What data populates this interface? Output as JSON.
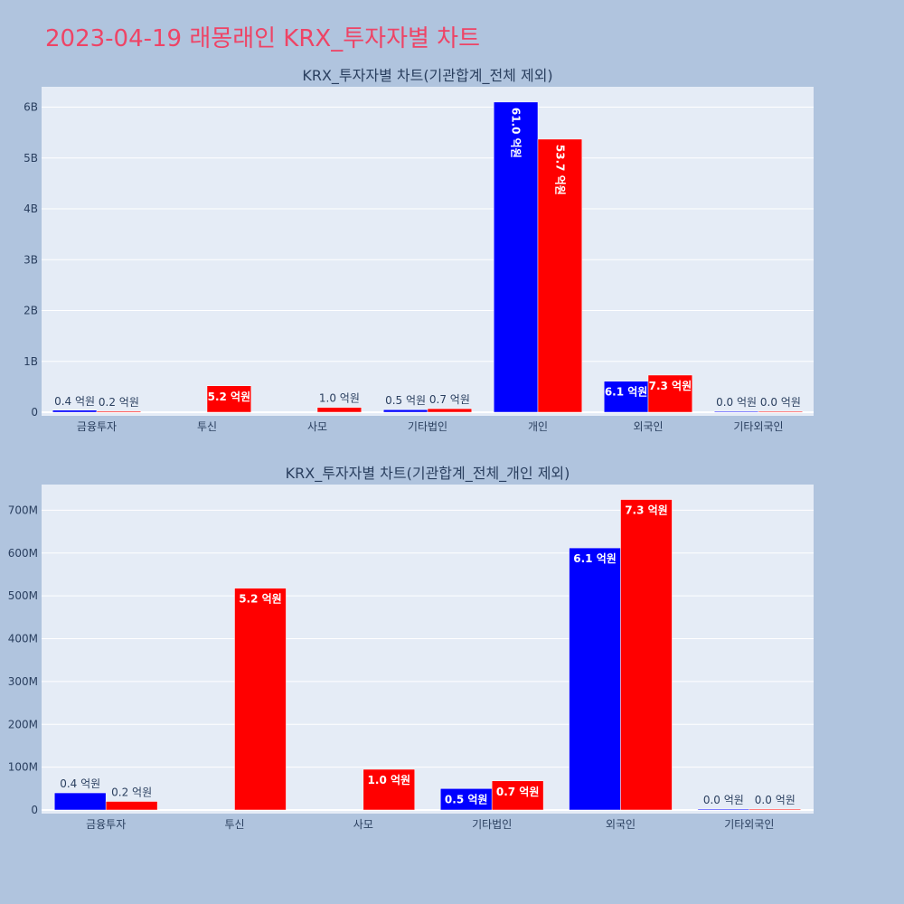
{
  "page_title": "2023-04-19 래몽래인 KRX_투자자별 차트",
  "colors": {
    "series_a": "#0000ff",
    "series_b": "#ff0000",
    "background": "#b0c4de",
    "plot_bg": "#e5ecf6",
    "title": "#ee4466"
  },
  "chart_data": [
    {
      "type": "bar",
      "title": "KRX_투자자별 차트(기관합계_전체 제외)",
      "categories": [
        "금융투자",
        "투신",
        "사모",
        "기타법인",
        "개인",
        "외국인",
        "기타외국인"
      ],
      "ylim": [
        0,
        6400000000
      ],
      "yticks": [
        0,
        1000000000,
        2000000000,
        3000000000,
        4000000000,
        5000000000,
        6000000000
      ],
      "ytick_labels": [
        "0",
        "1B",
        "2B",
        "3B",
        "4B",
        "5B",
        "6B"
      ],
      "grid": true,
      "series": [
        {
          "values": [
            40000000,
            null,
            null,
            50000000,
            6100000000,
            610000000,
            1000000
          ],
          "labels": [
            "0.4 억원",
            "",
            "",
            "0.5 억원",
            "61.0 억원",
            "6.1 억원",
            "0.0 억원"
          ]
        },
        {
          "values": [
            20000000,
            520000000,
            95000000,
            70000000,
            5370000000,
            730000000,
            1000000
          ],
          "labels": [
            "0.2 억원",
            "5.2 억원",
            "1.0 억원",
            "0.7 억원",
            "53.7 억원",
            "7.3 억원",
            "0.0 억원"
          ]
        }
      ]
    },
    {
      "type": "bar",
      "title": "KRX_투자자별 차트(기관합계_전체_개인 제외)",
      "categories": [
        "금융투자",
        "투신",
        "사모",
        "기타법인",
        "외국인",
        "기타외국인"
      ],
      "ylim": [
        0,
        760000000
      ],
      "yticks": [
        0,
        100000000,
        200000000,
        300000000,
        400000000,
        500000000,
        600000000,
        700000000
      ],
      "ytick_labels": [
        "0",
        "100M",
        "200M",
        "300M",
        "400M",
        "500M",
        "600M",
        "700M"
      ],
      "grid": true,
      "series": [
        {
          "values": [
            40000000,
            null,
            null,
            50000000,
            612000000,
            2000000
          ],
          "labels": [
            "0.4 억원",
            "",
            "",
            "0.5 억원",
            "6.1 억원",
            "0.0 억원"
          ]
        },
        {
          "values": [
            20000000,
            518000000,
            95000000,
            68000000,
            725000000,
            1000000
          ],
          "labels": [
            "0.2 억원",
            "5.2 억원",
            "1.0 억원",
            "0.7 억원",
            "7.3 억원",
            "0.0 억원"
          ]
        }
      ]
    }
  ]
}
